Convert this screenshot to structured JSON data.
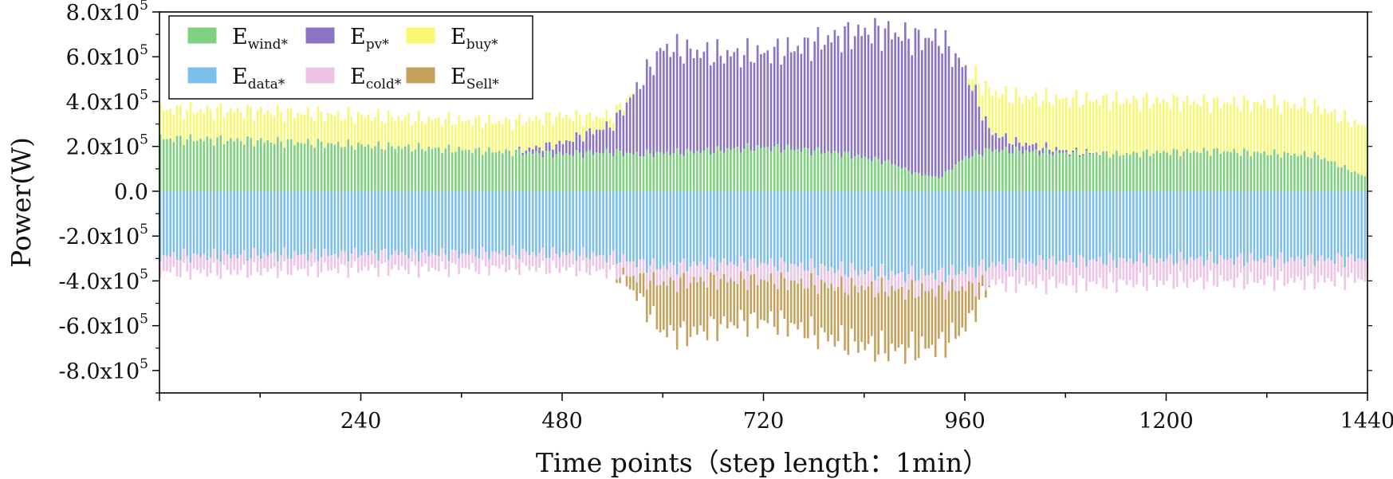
{
  "chart_data": {
    "type": "area",
    "title": "",
    "xlabel": "Time points（step length：1min）",
    "ylabel": "Power(W)",
    "xlim": [
      0,
      1440
    ],
    "ylim": [
      -900000,
      800000
    ],
    "xticks": [
      240,
      480,
      720,
      960,
      1200,
      1440
    ],
    "xtick_labels": [
      "240",
      "480",
      "720",
      "960",
      "1200",
      "1440"
    ],
    "yticks": [
      800000,
      600000,
      400000,
      200000,
      0,
      -200000,
      -400000,
      -600000,
      -800000
    ],
    "ytick_labels": [
      {
        "mantissa": "8.0x10",
        "exp": "5"
      },
      {
        "mantissa": "6.0x10",
        "exp": "5"
      },
      {
        "mantissa": "4.0x10",
        "exp": "5"
      },
      {
        "mantissa": "2.0x10",
        "exp": "5"
      },
      {
        "mantissa": "0.0",
        "exp": ""
      },
      {
        "mantissa": "-2.0x10",
        "exp": "5"
      },
      {
        "mantissa": "-4.0x10",
        "exp": "5"
      },
      {
        "mantissa": "-6.0x10",
        "exp": "5"
      },
      {
        "mantissa": "-8.0x10",
        "exp": "5"
      }
    ],
    "legend": [
      {
        "base": "E",
        "sub": "wind*",
        "color": "#7fd17f"
      },
      {
        "base": "E",
        "sub": "pv*",
        "color": "#8b74c4"
      },
      {
        "base": "E",
        "sub": "buy*",
        "color": "#f8f870"
      },
      {
        "base": "E",
        "sub": "data*",
        "color": "#7cbfec"
      },
      {
        "base": "E",
        "sub": "cold*",
        "color": "#eec3e6"
      },
      {
        "base": "E",
        "sub": "Sell*",
        "color": "#c4a25e"
      }
    ],
    "legend_position": "top-left",
    "x": [
      0,
      60,
      120,
      180,
      240,
      300,
      360,
      420,
      480,
      510,
      540,
      570,
      600,
      630,
      660,
      690,
      720,
      750,
      780,
      810,
      840,
      870,
      900,
      930,
      960,
      990,
      1020,
      1080,
      1140,
      1200,
      1260,
      1320,
      1380,
      1440
    ],
    "series": [
      {
        "name": "E_wind*",
        "stack": "positive",
        "color": "#7fd17f",
        "values": [
          235000,
          230000,
          225000,
          215000,
          205000,
          195000,
          185000,
          175000,
          165000,
          170000,
          175000,
          165000,
          170000,
          175000,
          180000,
          190000,
          195000,
          190000,
          180000,
          170000,
          150000,
          130000,
          80000,
          60000,
          150000,
          185000,
          180000,
          170000,
          165000,
          175000,
          180000,
          170000,
          160000,
          60000
        ]
      },
      {
        "name": "E_pv*",
        "stack": "positive",
        "color": "#8b74c4",
        "values": [
          0,
          0,
          0,
          0,
          0,
          0,
          0,
          0,
          50000,
          90000,
          120000,
          300000,
          470000,
          450000,
          430000,
          420000,
          420000,
          440000,
          480000,
          520000,
          560000,
          580000,
          600000,
          620000,
          400000,
          80000,
          40000,
          10000,
          0,
          0,
          0,
          0,
          0,
          0
        ]
      },
      {
        "name": "E_buy*",
        "stack": "positive",
        "color": "#f8f870",
        "values": [
          130000,
          130000,
          130000,
          130000,
          130000,
          130000,
          130000,
          135000,
          120000,
          70000,
          40000,
          0,
          0,
          0,
          0,
          0,
          0,
          0,
          0,
          0,
          0,
          0,
          0,
          0,
          0,
          180000,
          200000,
          230000,
          240000,
          225000,
          215000,
          220000,
          215000,
          220000
        ]
      },
      {
        "name": "E_data*",
        "stack": "negative",
        "color": "#7cbfec",
        "values": [
          -290000,
          -290000,
          -285000,
          -285000,
          -280000,
          -280000,
          -280000,
          -275000,
          -280000,
          -285000,
          -295000,
          -320000,
          -340000,
          -330000,
          -320000,
          -320000,
          -320000,
          -330000,
          -340000,
          -350000,
          -360000,
          -370000,
          -375000,
          -370000,
          -360000,
          -330000,
          -320000,
          -310000,
          -310000,
          -305000,
          -305000,
          -305000,
          -305000,
          -300000
        ]
      },
      {
        "name": "E_cold*",
        "stack": "negative",
        "color": "#eec3e6",
        "values": [
          -70000,
          -70000,
          -70000,
          -65000,
          -65000,
          -65000,
          -65000,
          -65000,
          -65000,
          -65000,
          -65000,
          -65000,
          -70000,
          -70000,
          -75000,
          -75000,
          -75000,
          -75000,
          -75000,
          -75000,
          -70000,
          -70000,
          -70000,
          -70000,
          -70000,
          -80000,
          -90000,
          -100000,
          -100000,
          -100000,
          -95000,
          -95000,
          -95000,
          -90000
        ]
      },
      {
        "name": "E_Sell*",
        "stack": "negative",
        "color": "#c4a25e",
        "values": [
          0,
          0,
          0,
          0,
          0,
          0,
          0,
          0,
          0,
          0,
          0,
          -80000,
          -220000,
          -240000,
          -210000,
          -190000,
          -180000,
          -190000,
          -220000,
          -240000,
          -260000,
          -270000,
          -260000,
          -250000,
          -180000,
          0,
          0,
          0,
          0,
          0,
          0,
          0,
          0,
          0
        ]
      }
    ]
  }
}
